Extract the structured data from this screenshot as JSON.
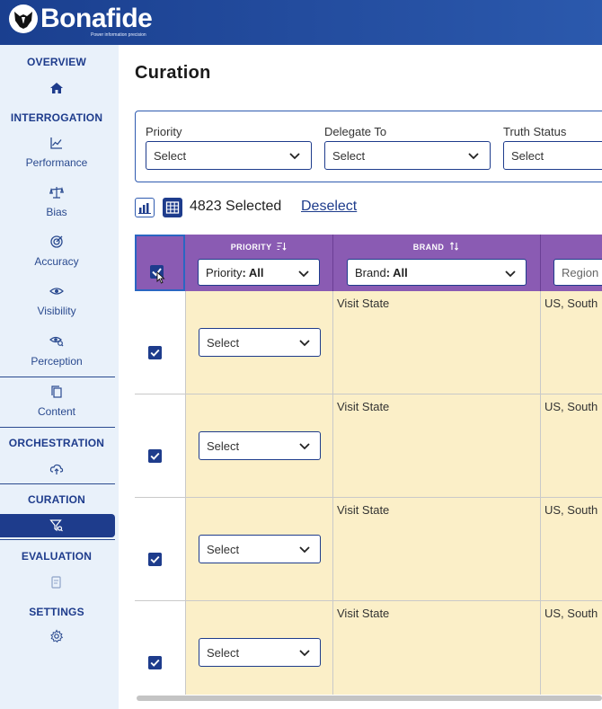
{
  "header": {
    "brand_name": "Bonafide",
    "tagline": "Power information precision"
  },
  "sidebar": {
    "sections": {
      "overview": "OVERVIEW",
      "interrogation": "INTERROGATION",
      "orchestration": "ORCHESTRATION",
      "curation": "CURATION",
      "evaluation": "EVALUATION",
      "settings": "SETTINGS"
    },
    "items": {
      "performance": "Performance",
      "bias": "Bias",
      "accuracy": "Accuracy",
      "visibility": "Visibility",
      "perception": "Perception",
      "content": "Content"
    }
  },
  "main": {
    "title": "Curation",
    "filters": [
      {
        "label": "Priority",
        "value": "Select"
      },
      {
        "label": "Delegate To",
        "value": "Select"
      },
      {
        "label": "Truth Status",
        "value": "Select"
      }
    ],
    "selection": {
      "count_text": "4823 Selected",
      "deselect_label": "Deselect"
    },
    "table": {
      "columns": [
        {
          "title": "PRIORITY",
          "filter_prefix": "Priority",
          "filter_value": ": All"
        },
        {
          "title": "BRAND",
          "filter_prefix": "Brand",
          "filter_value": ": All"
        },
        {
          "title": "",
          "filter_prefix": "Region",
          "filter_value": ""
        }
      ],
      "rows": [
        {
          "priority": "Select",
          "brand": "Visit State",
          "region": "US, South"
        },
        {
          "priority": "Select",
          "brand": "Visit State",
          "region": "US, South"
        },
        {
          "priority": "Select",
          "brand": "Visit State",
          "region": "US, South"
        },
        {
          "priority": "Select",
          "brand": "Visit State",
          "region": "US, South"
        }
      ]
    }
  },
  "colors": {
    "primary": "#1e3c8c",
    "header_purple": "#8a5bb3",
    "cell_yellow": "#fbefc8",
    "sidebar_bg": "#e9f1fa"
  }
}
